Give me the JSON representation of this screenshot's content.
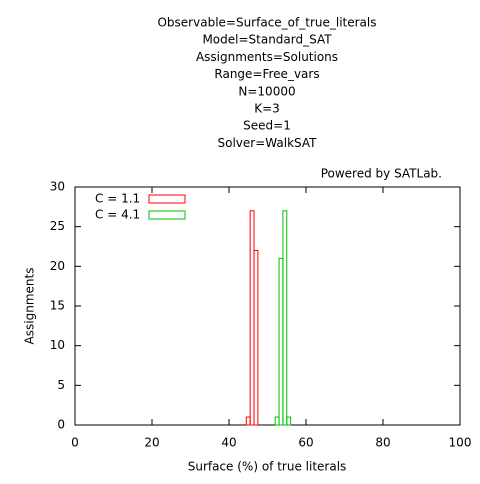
{
  "chart_data": {
    "type": "histogram",
    "title_lines": [
      "Observable=Surface_of_true_literals",
      "Model=Standard_SAT",
      "Assignments=Solutions",
      "Range=Free_vars",
      "N=10000",
      "K=3",
      "Seed=1",
      "Solver=WalkSAT"
    ],
    "annotation": "Powered by SATLab.",
    "xlabel": "Surface (%) of true literals",
    "ylabel": "Assignments",
    "series": [
      {
        "name": "C = 1.1",
        "color": "#ff0000",
        "bins": [
          44.5,
          45.5,
          46.5,
          47.5
        ],
        "values": [
          1,
          27,
          22
        ]
      },
      {
        "name": "C = 4.1",
        "color": "#00c000",
        "bins": [
          52,
          53,
          54,
          55,
          56
        ],
        "values": [
          1,
          21,
          27,
          1
        ]
      }
    ],
    "xlim": [
      0,
      100
    ],
    "xticks": [
      0,
      20,
      40,
      60,
      80,
      100
    ],
    "ylim": [
      0,
      30
    ],
    "yticks": [
      0,
      5,
      10,
      15,
      20,
      25,
      30
    ],
    "legend": "top-left"
  }
}
